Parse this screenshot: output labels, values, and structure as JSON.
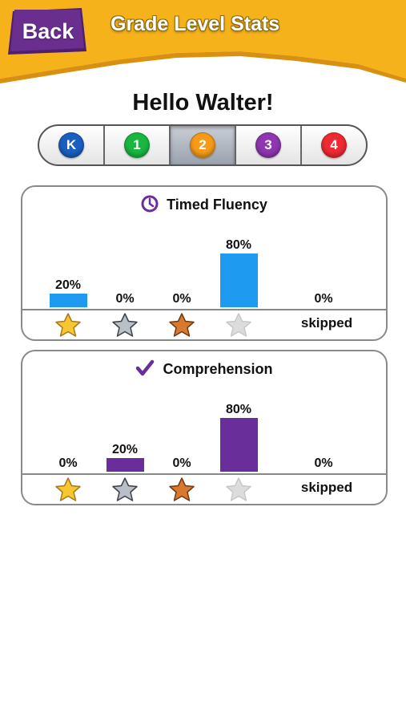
{
  "header": {
    "title": "Grade Level Stats",
    "back_label": "Back",
    "bg_color": "#f6b21b",
    "back_color": "#6a2f8e"
  },
  "greeting": "Hello Walter!",
  "grades": [
    {
      "label": "K",
      "color": "#1a5fc0",
      "selected": false
    },
    {
      "label": "1",
      "color": "#19b740",
      "selected": false
    },
    {
      "label": "2",
      "color": "#f79a18",
      "selected": true
    },
    {
      "label": "3",
      "color": "#8f36b0",
      "selected": false
    },
    {
      "label": "4",
      "color": "#ee2a33",
      "selected": false
    }
  ],
  "panels": [
    {
      "title": "Timed Fluency",
      "icon": "clock-icon",
      "bar_color": "#1e9bf0",
      "categories": [
        "gold-star",
        "silver-star",
        "bronze-star",
        "gray-star",
        "skipped"
      ],
      "values": [
        "20%",
        "0%",
        "0%",
        "80%",
        "0%"
      ],
      "skipped_label": "skipped"
    },
    {
      "title": "Comprehension",
      "icon": "checkmark-icon",
      "bar_color": "#6a2e9a",
      "categories": [
        "gold-star",
        "silver-star",
        "bronze-star",
        "gray-star",
        "skipped"
      ],
      "values": [
        "0%",
        "20%",
        "0%",
        "80%",
        "0%"
      ],
      "skipped_label": "skipped"
    }
  ]
}
